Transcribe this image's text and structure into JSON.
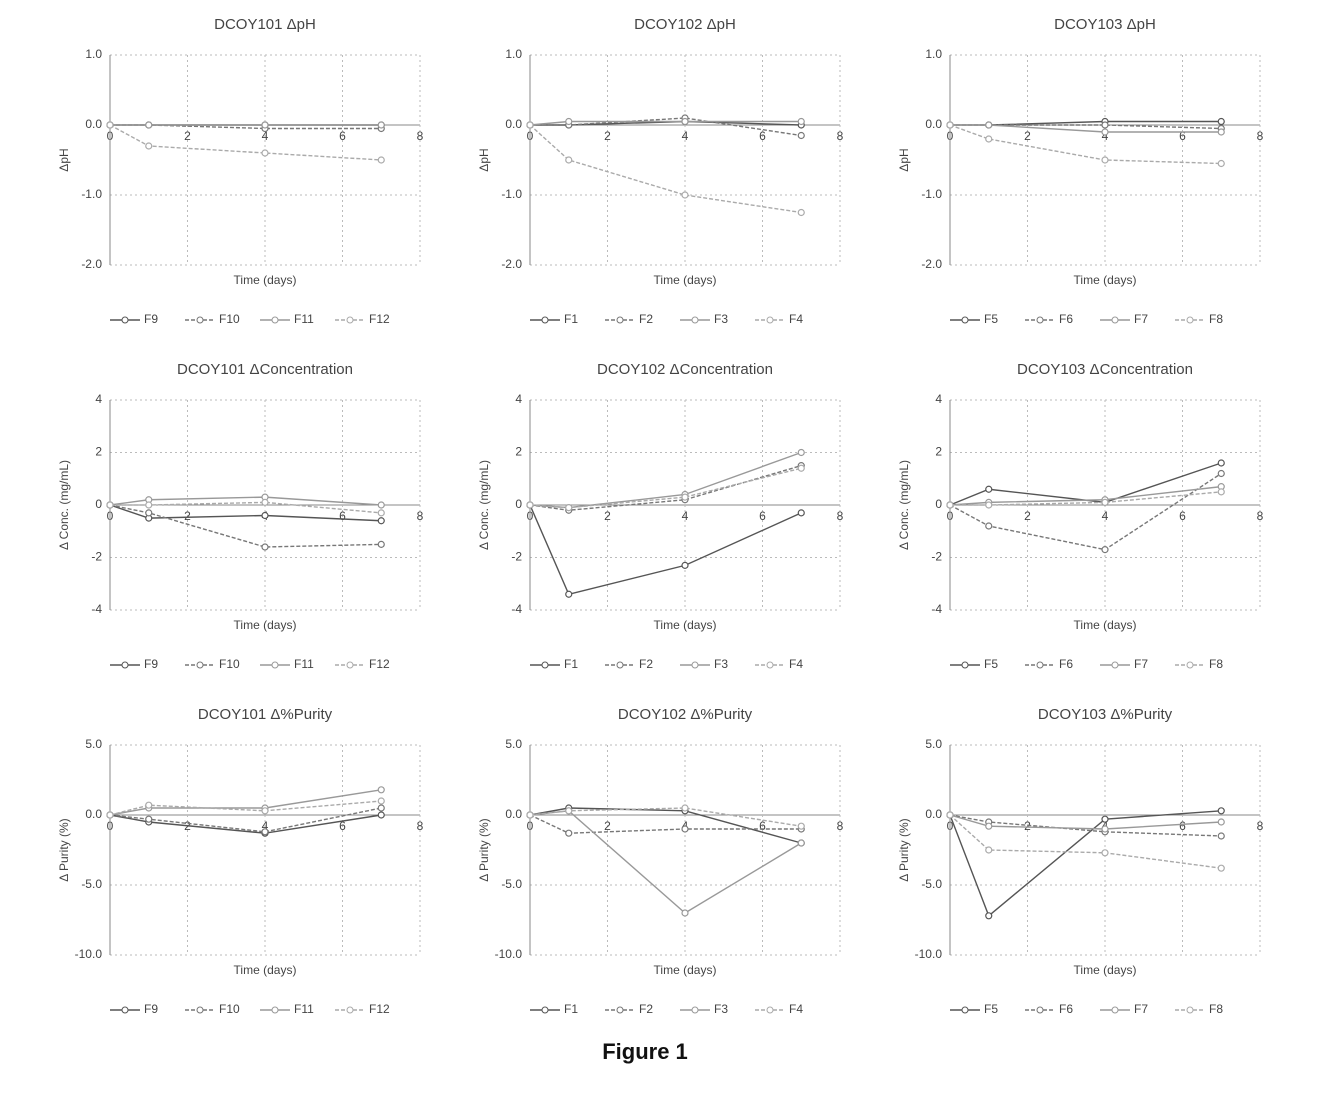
{
  "caption": "Figure 1",
  "chart_data": [
    {
      "type": "line",
      "title": "DCOY101 ΔpH",
      "x_label": "Time (days)",
      "y_label": "ΔpH",
      "x": [
        0,
        1,
        4,
        7
      ],
      "xlim": [
        0,
        8
      ],
      "xticks": [
        0,
        2,
        4,
        6,
        8
      ],
      "ylim": [
        -2,
        1
      ],
      "yticks": [
        {
          "value": 1,
          "label": "1.0"
        },
        {
          "value": 0,
          "label": "0.0"
        },
        {
          "value": -1,
          "label": "-1.0"
        },
        {
          "value": -2,
          "label": "-2.0"
        }
      ],
      "grid": true,
      "series": [
        {
          "name": "F9",
          "color": "#555555",
          "values": [
            0,
            0,
            0,
            0
          ]
        },
        {
          "name": "F10",
          "color": "#777777",
          "values": [
            0,
            0,
            -0.05,
            -0.05
          ]
        },
        {
          "name": "F11",
          "color": "#999999",
          "values": [
            0,
            0,
            0,
            0
          ]
        },
        {
          "name": "F12",
          "color": "#aaaaaa",
          "values": [
            0,
            -0.3,
            -0.4,
            -0.5
          ]
        }
      ]
    },
    {
      "type": "line",
      "title": "DCOY102 ΔpH",
      "x_label": "Time (days)",
      "y_label": "ΔpH",
      "x": [
        0,
        1,
        4,
        7
      ],
      "xlim": [
        0,
        8
      ],
      "xticks": [
        0,
        2,
        4,
        6,
        8
      ],
      "ylim": [
        -2,
        1
      ],
      "yticks": [
        {
          "value": 1,
          "label": "1.0"
        },
        {
          "value": 0,
          "label": "0.0"
        },
        {
          "value": -1,
          "label": "-1.0"
        },
        {
          "value": -2,
          "label": "-2.0"
        }
      ],
      "grid": true,
      "series": [
        {
          "name": "F1",
          "color": "#555555",
          "values": [
            0,
            0,
            0.05,
            0
          ]
        },
        {
          "name": "F2",
          "color": "#777777",
          "values": [
            0,
            0,
            0.1,
            -0.15
          ]
        },
        {
          "name": "F3",
          "color": "#999999",
          "values": [
            0,
            0.05,
            0.05,
            0.05
          ]
        },
        {
          "name": "F4",
          "color": "#aaaaaa",
          "values": [
            0,
            -0.5,
            -1.0,
            -1.25
          ]
        }
      ]
    },
    {
      "type": "line",
      "title": "DCOY103 ΔpH",
      "x_label": "Time (days)",
      "y_label": "ΔpH",
      "x": [
        0,
        1,
        4,
        7
      ],
      "xlim": [
        0,
        8
      ],
      "xticks": [
        0,
        2,
        4,
        6,
        8
      ],
      "ylim": [
        -2,
        1
      ],
      "yticks": [
        {
          "value": 1,
          "label": "1.0"
        },
        {
          "value": 0,
          "label": "0.0"
        },
        {
          "value": -1,
          "label": "-1.0"
        },
        {
          "value": -2,
          "label": "-2.0"
        }
      ],
      "grid": true,
      "series": [
        {
          "name": "F5",
          "color": "#555555",
          "values": [
            0,
            0,
            0.05,
            0.05
          ]
        },
        {
          "name": "F6",
          "color": "#777777",
          "values": [
            0,
            0,
            0,
            -0.05
          ]
        },
        {
          "name": "F7",
          "color": "#999999",
          "values": [
            0,
            0,
            -0.1,
            -0.1
          ]
        },
        {
          "name": "F8",
          "color": "#aaaaaa",
          "values": [
            0,
            -0.2,
            -0.5,
            -0.55
          ]
        }
      ]
    },
    {
      "type": "line",
      "title": "DCOY101 ΔConcentration",
      "x_label": "Time (days)",
      "y_label": "Δ Conc. (mg/mL)",
      "x": [
        0,
        1,
        4,
        7
      ],
      "xlim": [
        0,
        8
      ],
      "xticks": [
        0,
        2,
        4,
        6,
        8
      ],
      "ylim": [
        -4,
        4
      ],
      "yticks": [
        4,
        2,
        0,
        -2,
        -4
      ],
      "grid": true,
      "series": [
        {
          "name": "F9",
          "color": "#555555",
          "values": [
            0,
            -0.5,
            -0.4,
            -0.6
          ]
        },
        {
          "name": "F10",
          "color": "#777777",
          "values": [
            0,
            -0.3,
            -1.6,
            -1.5
          ]
        },
        {
          "name": "F11",
          "color": "#999999",
          "values": [
            0,
            0.2,
            0.3,
            0
          ]
        },
        {
          "name": "F12",
          "color": "#aaaaaa",
          "values": [
            0,
            0,
            0.1,
            -0.3
          ]
        }
      ]
    },
    {
      "type": "line",
      "title": "DCOY102 ΔConcentration",
      "x_label": "Time (days)",
      "y_label": "Δ Conc. (mg/mL)",
      "x": [
        0,
        1,
        4,
        7
      ],
      "xlim": [
        0,
        8
      ],
      "xticks": [
        0,
        2,
        4,
        6,
        8
      ],
      "ylim": [
        -4,
        4
      ],
      "yticks": [
        4,
        2,
        0,
        -2,
        -4
      ],
      "grid": true,
      "series": [
        {
          "name": "F1",
          "color": "#555555",
          "values": [
            0,
            -3.4,
            -2.3,
            -0.3
          ]
        },
        {
          "name": "F2",
          "color": "#777777",
          "values": [
            0,
            -0.2,
            0.2,
            1.5
          ]
        },
        {
          "name": "F3",
          "color": "#999999",
          "values": [
            0,
            -0.1,
            0.4,
            2.0
          ]
        },
        {
          "name": "F4",
          "color": "#aaaaaa",
          "values": [
            0,
            -0.1,
            0.3,
            1.4
          ]
        }
      ]
    },
    {
      "type": "line",
      "title": "DCOY103 ΔConcentration",
      "x_label": "Time (days)",
      "y_label": "Δ Conc. (mg/mL)",
      "x": [
        0,
        1,
        4,
        7
      ],
      "xlim": [
        0,
        8
      ],
      "xticks": [
        0,
        2,
        4,
        6,
        8
      ],
      "ylim": [
        -4,
        4
      ],
      "yticks": [
        4,
        2,
        0,
        -2,
        -4
      ],
      "grid": true,
      "series": [
        {
          "name": "F5",
          "color": "#555555",
          "values": [
            0,
            0.6,
            0.1,
            1.6
          ]
        },
        {
          "name": "F6",
          "color": "#777777",
          "values": [
            0,
            -0.8,
            -1.7,
            1.2
          ]
        },
        {
          "name": "F7",
          "color": "#999999",
          "values": [
            0,
            0.1,
            0.2,
            0.7
          ]
        },
        {
          "name": "F8",
          "color": "#aaaaaa",
          "values": [
            0,
            0,
            0.1,
            0.5
          ]
        }
      ]
    },
    {
      "type": "line",
      "title": "DCOY101 Δ%Purity",
      "x_label": "Time (days)",
      "y_label": "Δ Purity (%)",
      "x": [
        0,
        1,
        4,
        7
      ],
      "xlim": [
        0,
        8
      ],
      "xticks": [
        0,
        2,
        4,
        6,
        8
      ],
      "ylim": [
        -10,
        5
      ],
      "yticks": [
        {
          "value": 5,
          "label": "5.0"
        },
        {
          "value": 0,
          "label": "0.0"
        },
        {
          "value": -5,
          "label": "-5.0"
        },
        {
          "value": -10,
          "label": "-10.0"
        }
      ],
      "grid": true,
      "series": [
        {
          "name": "F9",
          "color": "#555555",
          "values": [
            0,
            -0.5,
            -1.3,
            0
          ]
        },
        {
          "name": "F10",
          "color": "#777777",
          "values": [
            0,
            -0.3,
            -1.2,
            0.5
          ]
        },
        {
          "name": "F11",
          "color": "#999999",
          "values": [
            0,
            0.5,
            0.5,
            1.8
          ]
        },
        {
          "name": "F12",
          "color": "#aaaaaa",
          "values": [
            0,
            0.7,
            0.3,
            1.0
          ]
        }
      ]
    },
    {
      "type": "line",
      "title": "DCOY102 Δ%Purity",
      "x_label": "Time (days)",
      "y_label": "Δ Purity (%)",
      "x": [
        0,
        1,
        4,
        7
      ],
      "xlim": [
        0,
        8
      ],
      "xticks": [
        0,
        2,
        4,
        6,
        8
      ],
      "ylim": [
        -10,
        5
      ],
      "yticks": [
        {
          "value": 5,
          "label": "5.0"
        },
        {
          "value": 0,
          "label": "0.0"
        },
        {
          "value": -5,
          "label": "-5.0"
        },
        {
          "value": -10,
          "label": "-10.0"
        }
      ],
      "grid": true,
      "series": [
        {
          "name": "F1",
          "color": "#555555",
          "values": [
            0,
            0.5,
            0.3,
            -2.0
          ]
        },
        {
          "name": "F2",
          "color": "#777777",
          "values": [
            0,
            -1.3,
            -1.0,
            -1.0
          ]
        },
        {
          "name": "F3",
          "color": "#999999",
          "values": [
            0,
            0.3,
            -7.0,
            -2.0
          ]
        },
        {
          "name": "F4",
          "color": "#aaaaaa",
          "values": [
            0,
            0.3,
            0.5,
            -0.8
          ]
        }
      ]
    },
    {
      "type": "line",
      "title": "DCOY103 Δ%Purity",
      "x_label": "Time (days)",
      "y_label": "Δ Purity (%)",
      "x": [
        0,
        1,
        4,
        7
      ],
      "xlim": [
        0,
        8
      ],
      "xticks": [
        0,
        2,
        4,
        6,
        8
      ],
      "ylim": [
        -10,
        5
      ],
      "yticks": [
        {
          "value": 5,
          "label": "5.0"
        },
        {
          "value": 0,
          "label": "0.0"
        },
        {
          "value": -5,
          "label": "-5.0"
        },
        {
          "value": -10,
          "label": "-10.0"
        }
      ],
      "grid": true,
      "series": [
        {
          "name": "F5",
          "color": "#555555",
          "values": [
            0,
            -7.2,
            -0.3,
            0.3
          ]
        },
        {
          "name": "F6",
          "color": "#777777",
          "values": [
            0,
            -0.5,
            -1.2,
            -1.5
          ]
        },
        {
          "name": "F7",
          "color": "#999999",
          "values": [
            0,
            -0.8,
            -1.0,
            -0.5
          ]
        },
        {
          "name": "F8",
          "color": "#aaaaaa",
          "values": [
            0,
            -2.5,
            -2.7,
            -3.8
          ]
        }
      ]
    }
  ]
}
